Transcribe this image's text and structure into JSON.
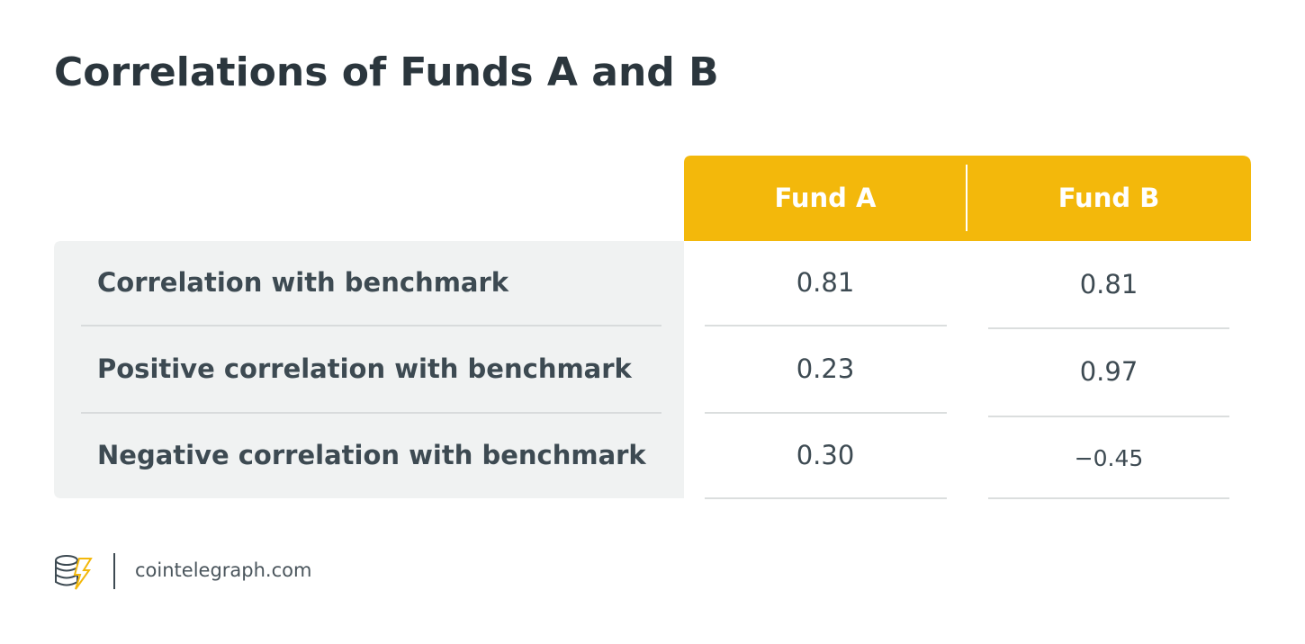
{
  "header": {
    "title": "Correlations of Funds A and B"
  },
  "table": {
    "columns": [
      "Fund A",
      "Fund B"
    ],
    "rows": [
      [
        "Correlation with benchmark",
        "0.81",
        "0.81"
      ],
      [
        "Positive correlation with benchmark",
        "0.23",
        "0.97"
      ],
      [
        "Negative correlation with benchmark",
        "0.30",
        "−0.45"
      ]
    ]
  },
  "footer": {
    "source": "cointelegraph.com"
  }
}
